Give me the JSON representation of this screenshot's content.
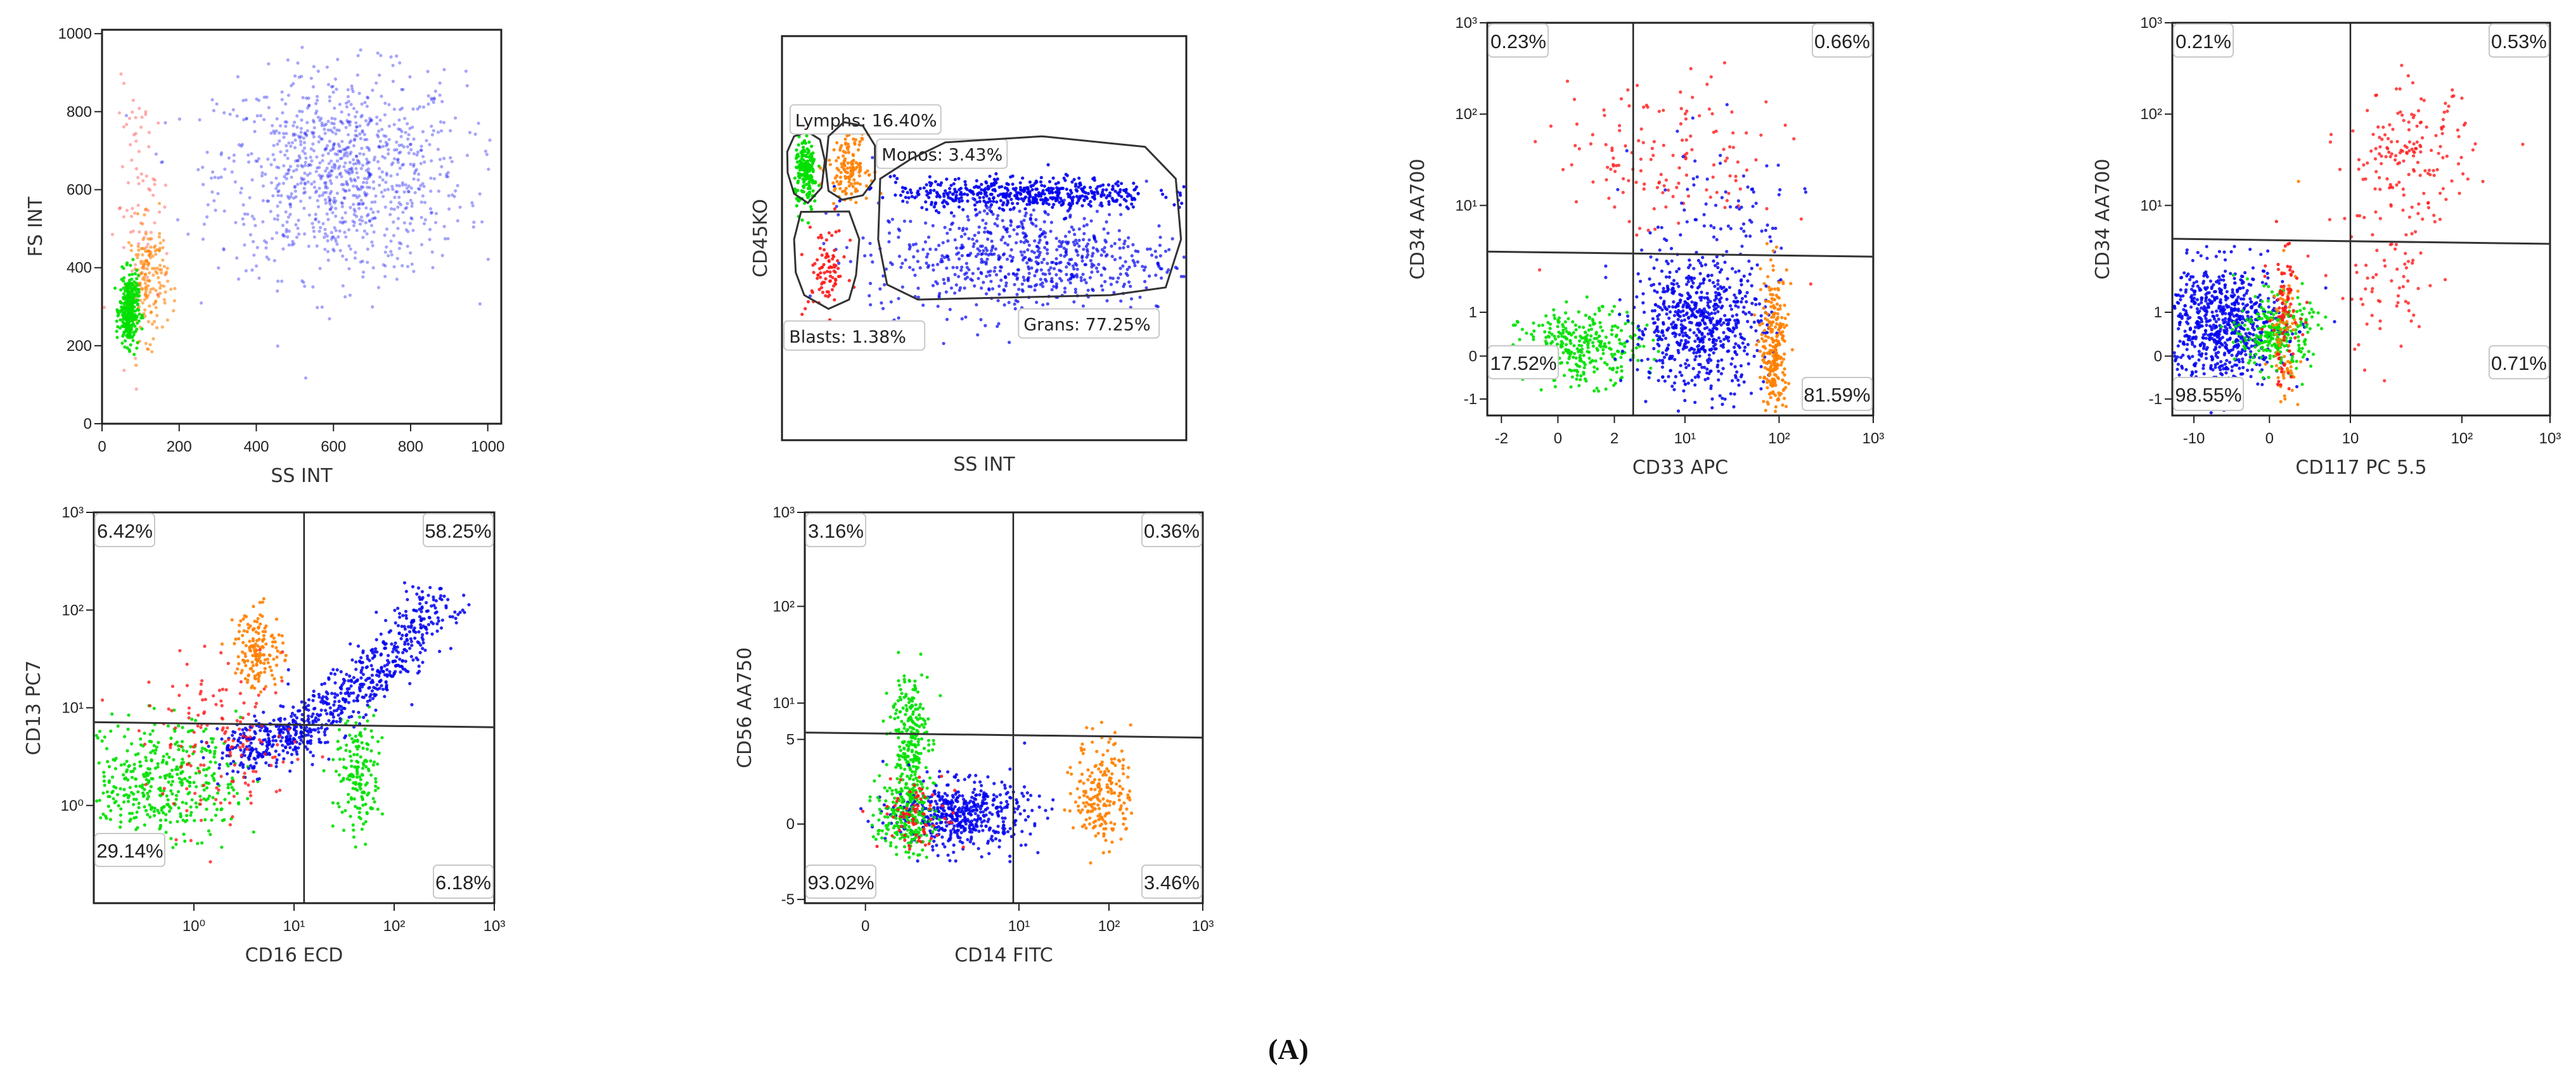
{
  "figure_label": "(A)",
  "colors": {
    "lymphs": "#00e000",
    "monos": "#ff7f00",
    "blasts": "#ff1a1a",
    "grans": "#0000f0",
    "axis": "#222222"
  },
  "chart_data": [
    {
      "type": "scatter",
      "id": "p1",
      "xlabel": "SS INT",
      "ylabel": "FS INT",
      "xticks": [
        "0",
        "200",
        "400",
        "600",
        "800",
        "1000"
      ],
      "yticks": [
        "0",
        "200",
        "400",
        "600",
        "800",
        "1000"
      ],
      "xlim": [
        0,
        1035
      ],
      "ylim": [
        0,
        1010
      ],
      "populations": [
        {
          "name": "Lymphs",
          "color": "#00e000",
          "x_center": 70,
          "y_center": 290
        },
        {
          "name": "Monos",
          "color": "#ff7f00",
          "x_center": 120,
          "y_center": 380
        },
        {
          "name": "Blasts",
          "color": "#ff1a1a",
          "x_center": 100,
          "y_center": 550
        },
        {
          "name": "Grans",
          "color": "#0000f0",
          "x_center": 620,
          "y_center": 640
        }
      ]
    },
    {
      "type": "scatter",
      "id": "p2",
      "xlabel": "SS INT",
      "ylabel": "CD45KO",
      "gates": [
        {
          "name": "Lymphs",
          "label": "Lymphs: 16.40%",
          "percent": 16.4
        },
        {
          "name": "Monos",
          "label": "Monos: 3.43%",
          "percent": 3.43
        },
        {
          "name": "Blasts",
          "label": "Blasts: 1.38%",
          "percent": 1.38
        },
        {
          "name": "Grans",
          "label": "Grans: 77.25%",
          "percent": 77.25
        }
      ]
    },
    {
      "type": "scatter",
      "id": "p3",
      "xlabel": "CD33 APC",
      "ylabel": "CD34 AA700",
      "xticks": [
        "-2",
        "0",
        "2",
        "10¹",
        "10²",
        "10³"
      ],
      "yticks": [
        "10³",
        "10²",
        "10¹",
        "1",
        "0",
        "-1"
      ],
      "quadrants": {
        "upper_left": "0.23%",
        "upper_right": "0.66%",
        "lower_left": "17.52%",
        "lower_right": "81.59%"
      }
    },
    {
      "type": "scatter",
      "id": "p4",
      "xlabel": "CD117 PC 5.5",
      "ylabel": "CD34 AA700",
      "xticks": [
        "-10",
        "0",
        "10",
        "10²",
        "10³"
      ],
      "yticks": [
        "10³",
        "10²",
        "10¹",
        "1",
        "0",
        "-1"
      ],
      "quadrants": {
        "upper_left": "0.21%",
        "upper_right": "0.53%",
        "lower_left": "98.55%",
        "lower_right": "0.71%"
      }
    },
    {
      "type": "scatter",
      "id": "p5",
      "xlabel": "CD16 ECD",
      "ylabel": "CD13 PC7",
      "xticks": [
        "10⁰",
        "10¹",
        "10²",
        "10³"
      ],
      "yticks": [
        "10³",
        "10²",
        "10¹",
        "10⁰"
      ],
      "quadrants": {
        "upper_left": "6.42%",
        "upper_right": "58.25%",
        "lower_left": "29.14%",
        "lower_right": "6.18%"
      }
    },
    {
      "type": "scatter",
      "id": "p6",
      "xlabel": "CD14 FITC",
      "ylabel": "CD56 AA750",
      "xticks": [
        "0",
        "10¹",
        "10²",
        "10³"
      ],
      "yticks": [
        "10³",
        "10²",
        "10¹",
        "5",
        "0",
        "-5"
      ],
      "quadrants": {
        "upper_left": "3.16%",
        "upper_right": "0.36%",
        "lower_left": "93.02%",
        "lower_right": "3.46%"
      }
    }
  ]
}
